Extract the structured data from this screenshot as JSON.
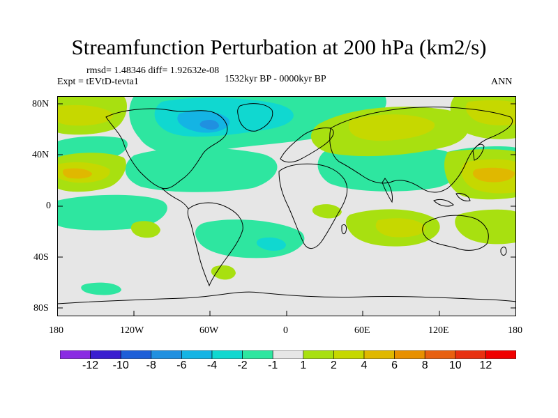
{
  "title": "Streamfunction Perturbation at 200 hPa (km2/s)",
  "stats": "rmsd= 1.48346 diff= 1.92632e-08",
  "experiment": "Expt = tEVtD-tevta1",
  "period": "1532kyr BP - 0000kyr BP",
  "season": "ANN",
  "lat_labels": [
    "80N",
    "40N",
    "0",
    "40S",
    "80S"
  ],
  "lon_labels": [
    "180",
    "120W",
    "60W",
    "0",
    "60E",
    "120E",
    "180"
  ],
  "colorbar": {
    "labels": [
      "-12",
      "-10",
      "-8",
      "-6",
      "-4",
      "-2",
      "-1",
      "1",
      "2",
      "4",
      "6",
      "8",
      "10",
      "12"
    ],
    "colors": [
      "#8a2be2",
      "#3a1fd0",
      "#1f5fd8",
      "#2090e0",
      "#14b4e4",
      "#10d8d0",
      "#2ee6a0",
      "#e6e6e6",
      "#a8e010",
      "#c6d800",
      "#e0b800",
      "#e89000",
      "#e86010",
      "#e83010",
      "#f00000"
    ]
  }
}
